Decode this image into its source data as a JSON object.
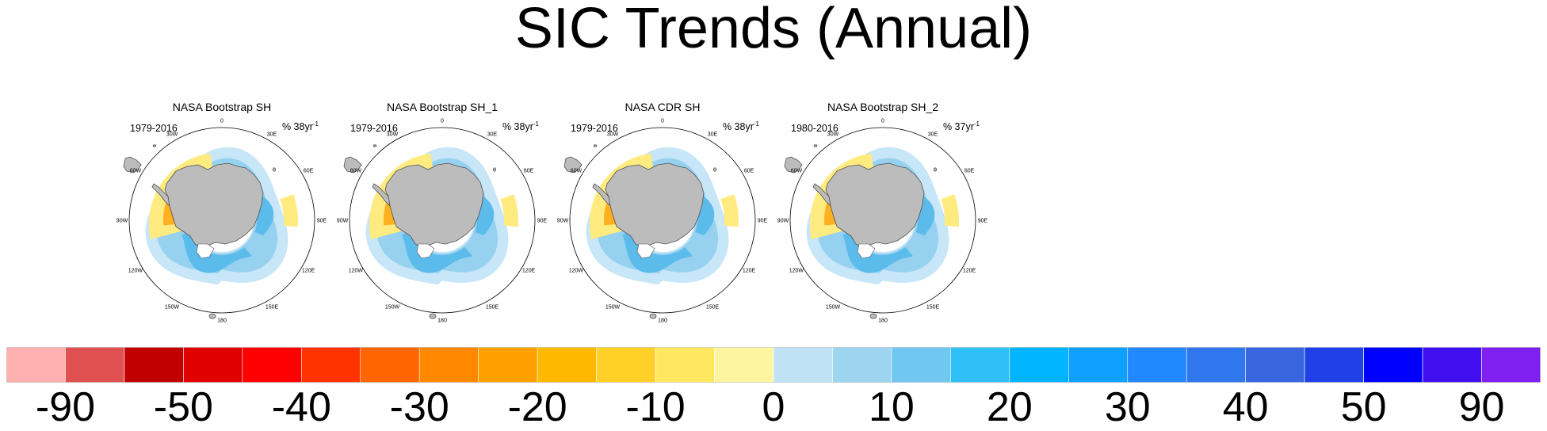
{
  "title": "SIC Trends (Annual)",
  "panels": [
    {
      "title": "NASA Bootstrap SH",
      "years": "1979-2016",
      "pct": "% 38yr",
      "sup": "-1"
    },
    {
      "title": "NASA Bootstrap SH_1",
      "years": "1979-2016",
      "pct": "% 38yr",
      "sup": "-1"
    },
    {
      "title": "NASA CDR SH",
      "years": "1979-2016",
      "pct": "% 38yr",
      "sup": "-1"
    },
    {
      "title": "NASA Bootstrap SH_2",
      "years": "1980-2016",
      "pct": "% 37yr",
      "sup": "-1"
    }
  ],
  "longitude_labels": [
    "0",
    "30E",
    "60E",
    "90E",
    "120E",
    "150E",
    "180",
    "150W",
    "120W",
    "90W",
    "60W",
    "30W"
  ],
  "colorbar": {
    "colors": [
      "#ffb0b0",
      "#e05050",
      "#c00000",
      "#e00000",
      "#ff0000",
      "#ff3300",
      "#ff6600",
      "#ff8800",
      "#ffa000",
      "#ffb800",
      "#ffd028",
      "#ffe860",
      "#fff5a0",
      "#bfe3f5",
      "#9dd5f0",
      "#70c7ef",
      "#30c0f8",
      "#00b4ff",
      "#10a0ff",
      "#2288ff",
      "#3077ee",
      "#3866e0",
      "#2040e8",
      "#0000ff",
      "#4010f0",
      "#8020f0"
    ],
    "labels": [
      "-90",
      "-50",
      "-40",
      "-30",
      "-20",
      "-10",
      "0",
      "10",
      "20",
      "30",
      "40",
      "50",
      "90"
    ]
  },
  "colors": {
    "land": "#bcbcbc",
    "land_outline": "#505050",
    "ice_blue_light": "#c7e6f7",
    "ice_blue_mid": "#96d1f0",
    "ice_blue_dark": "#5bbcec",
    "trend_yellow": "#ffeb80",
    "trend_orange": "#ffb020",
    "trend_red": "#ff7a00"
  }
}
